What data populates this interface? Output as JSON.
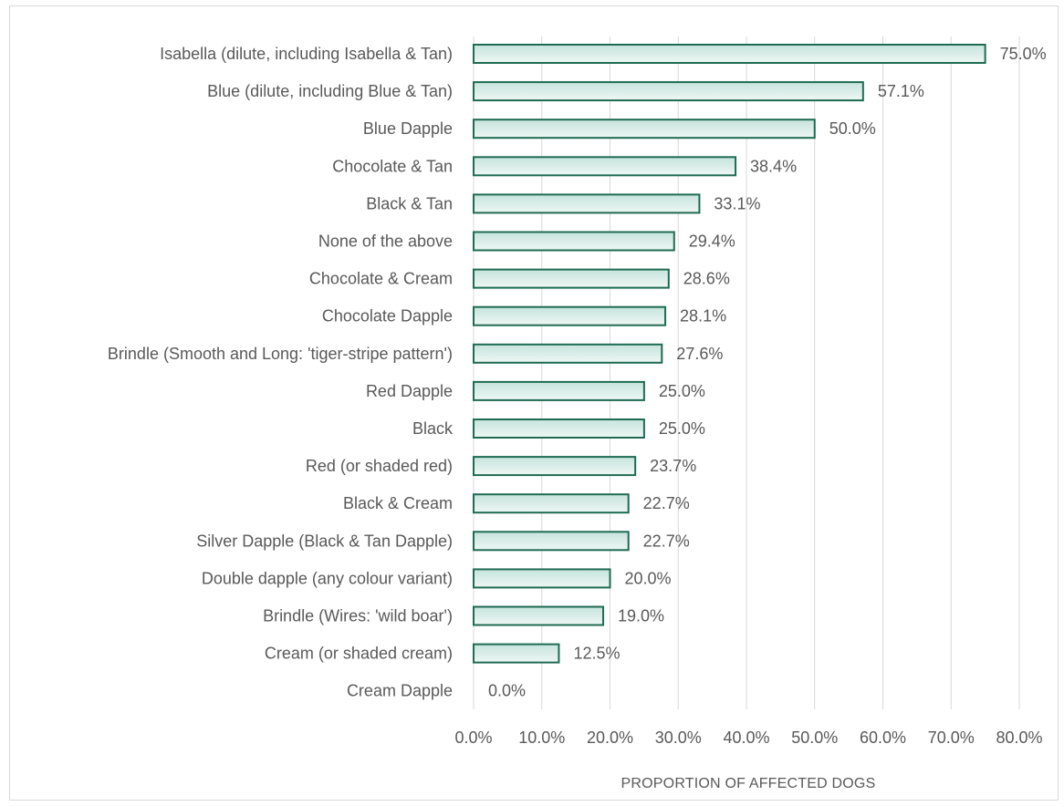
{
  "chart_data": {
    "type": "bar",
    "orientation": "horizontal",
    "title": "",
    "xlabel": "PROPORTION OF AFFECTED DOGS",
    "ylabel": "",
    "xlim": [
      0,
      80
    ],
    "x_ticks": [
      "0.0%",
      "10.0%",
      "20.0%",
      "30.0%",
      "40.0%",
      "50.0%",
      "60.0%",
      "70.0%",
      "80.0%"
    ],
    "grid": "vertical",
    "legend": "none",
    "categories": [
      "Isabella (dilute, including Isabella & Tan)",
      "Blue (dilute, including Blue & Tan)",
      "Blue Dapple",
      "Chocolate & Tan",
      "Black & Tan",
      "None of the above",
      "Chocolate & Cream",
      "Chocolate Dapple",
      "Brindle (Smooth and Long: 'tiger-stripe pattern')",
      "Red Dapple",
      "Black",
      "Red (or shaded red)",
      "Black & Cream",
      "Silver Dapple (Black & Tan Dapple)",
      "Double dapple (any colour variant)",
      "Brindle (Wires: 'wild boar')",
      "Cream (or shaded cream)",
      "Cream Dapple"
    ],
    "values": [
      75.0,
      57.1,
      50.0,
      38.4,
      33.1,
      29.4,
      28.6,
      28.1,
      27.6,
      25.0,
      25.0,
      23.7,
      22.7,
      22.7,
      20.0,
      19.0,
      12.5,
      0.0
    ],
    "value_labels": [
      "75.0%",
      "57.1%",
      "50.0%",
      "38.4%",
      "33.1%",
      "29.4%",
      "28.6%",
      "28.1%",
      "27.6%",
      "25.0%",
      "25.0%",
      "23.7%",
      "22.7%",
      "22.7%",
      "20.0%",
      "19.0%",
      "12.5%",
      "0.0%"
    ],
    "colors": {
      "bar_fill_start": "#c6e3dc",
      "bar_fill_end": "#eef7f4",
      "bar_stroke": "#1e6b52",
      "grid": "#d9d9d9",
      "text": "#595959"
    }
  }
}
